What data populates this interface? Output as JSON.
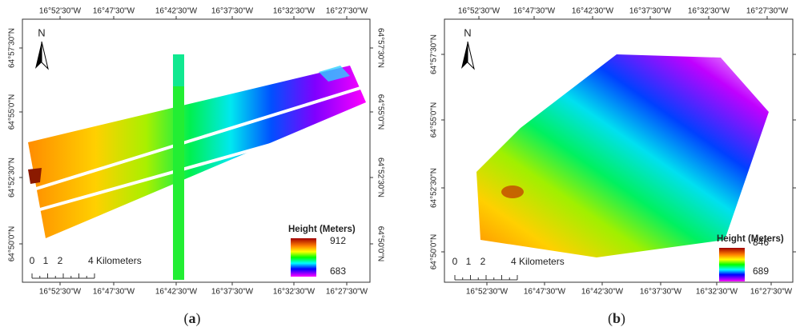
{
  "panels": [
    {
      "caption": [
        "(",
        "a",
        ")"
      ],
      "north": "N",
      "top_labels": [
        "16°52'30\"W",
        "16°47'30\"W",
        "16°42'30\"W",
        "16°37'30\"W",
        "16°32'30\"W",
        "16°27'30\"W"
      ],
      "bottom_labels": [
        "16°52'30\"W",
        "16°47'30\"W",
        "16°42'30\"W",
        "16°37'30\"W",
        "16°32'30\"W",
        "16°27'30\"W"
      ],
      "left_labels": [
        "64°57'30\"N",
        "64°55'0\"N",
        "64°52'30\"N",
        "64°50'0\"N"
      ],
      "right_labels": [
        "64°57'30\"N",
        "64°55'0\"N",
        "64°52'30\"N",
        "64°50'0\"N"
      ],
      "legend": {
        "title": "Height (Meters)",
        "max": 912,
        "min": 683
      },
      "scale_bar": [
        "0",
        "1",
        "2",
        "4 Kilometers"
      ]
    },
    {
      "caption": [
        "(",
        "b",
        ")"
      ],
      "north": "N",
      "top_labels": [
        "16°52'30\"W",
        "16°47'30\"W",
        "16°42'30\"W",
        "16°37'30\"W",
        "16°32'30\"W",
        "16°27'30\"W"
      ],
      "bottom_labels": [
        "16°52'30\"W",
        "16°47'30\"W",
        "16°42'30\"W",
        "16°37'30\"W",
        "16°32'30\"W",
        "16°27'30\"W"
      ],
      "left_labels": [
        "64°57'30\"N",
        "64°55'0\"N",
        "64°52'30\"N",
        "64°50'0\"N"
      ],
      "right_labels": [],
      "legend": {
        "title": "Height (Meters)",
        "max": 846,
        "min": 689
      },
      "scale_bar": [
        "0",
        "1",
        "2",
        "4 Kilometers"
      ]
    }
  ]
}
